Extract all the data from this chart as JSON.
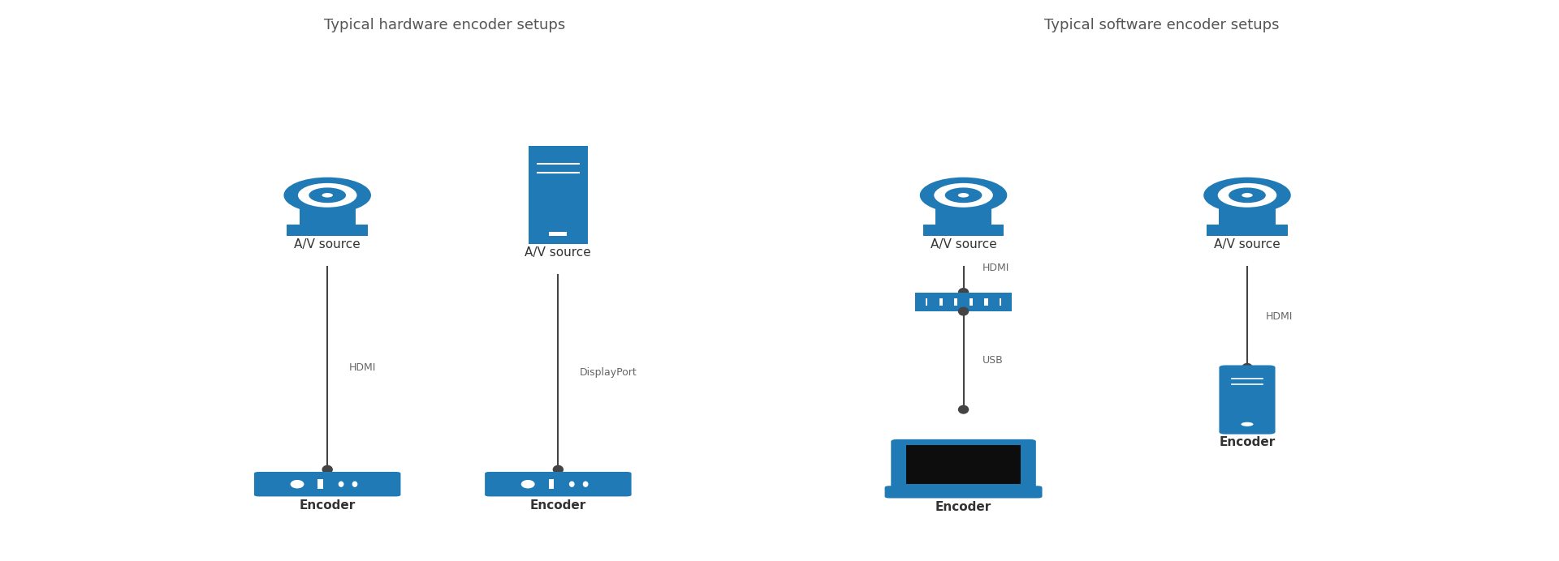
{
  "bg_color": "#ffffff",
  "title_color": "#555555",
  "blue": "#1f7ab5",
  "line_color": "#555555",
  "dot_color": "#444444",
  "text_color": "#666666",
  "label_color": "#333333",
  "hw_title": "Typical hardware encoder setups",
  "sw_title": "Typical software encoder setups",
  "label_hdmi": "HDMI",
  "label_displayport": "DisplayPort",
  "label_usb": "USB",
  "label_source": "A/V source",
  "label_encoder": "Encoder"
}
